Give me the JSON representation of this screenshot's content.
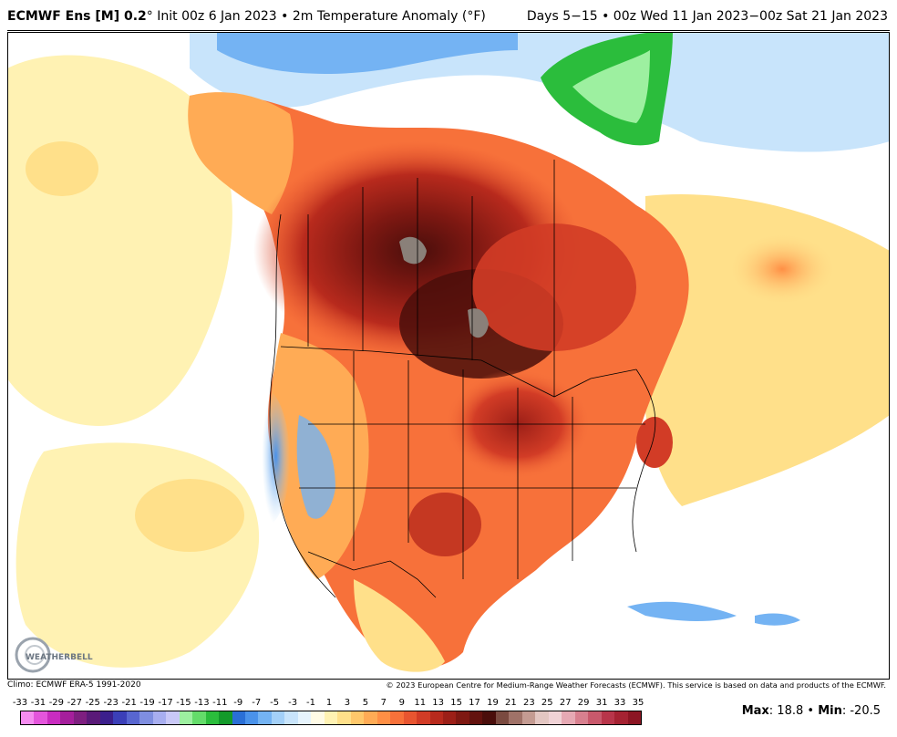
{
  "header": {
    "model": "ECMWF Ens [M] 0.2",
    "degree_symbol": "°",
    "init_text": " Init 00z 6 Jan 2023 • 2m Temperature Anomaly (°F)",
    "valid_text": "Days 5−15 • 00z Wed 11 Jan 2023−00z Sat 21 Jan 2023"
  },
  "footer": {
    "climo": "Climo: ECMWF ERA-5 1991-2020",
    "copyright": "© 2023 European Centre for Medium-Range Weather Forecasts (ECMWF). This service is based on data and products of the ECMWF.",
    "max_label": "Max",
    "max_value": ": 18.8 • ",
    "min_label": "Min",
    "min_value": ": -20.5"
  },
  "logo": {
    "text": "WEATHERBELL"
  },
  "legend": {
    "tick_labels": [
      "-33",
      "-31",
      "-29",
      "-27",
      "-25",
      "-23",
      "-21",
      "-19",
      "-17",
      "-15",
      "-13",
      "-11",
      "-9",
      "-7",
      "-5",
      "-3",
      "-1",
      "1",
      "3",
      "5",
      "7",
      "9",
      "11",
      "13",
      "15",
      "17",
      "19",
      "21",
      "23",
      "25",
      "27",
      "29",
      "31",
      "33",
      "35"
    ],
    "colors": [
      "#f58cf0",
      "#e455dc",
      "#c92cc0",
      "#a51f9c",
      "#7e1f80",
      "#5a1a78",
      "#3b1f8c",
      "#3b3fb8",
      "#5866d0",
      "#7f8ee0",
      "#a8aef0",
      "#c9c8f7",
      "#9df0a0",
      "#64dc6a",
      "#2bbd3c",
      "#139a2a",
      "#2a6fd6",
      "#4a92ea",
      "#74b3f3",
      "#a3d0f8",
      "#c8e4fb",
      "#e6f4fd",
      "#fffbe6",
      "#fff2b3",
      "#ffe08a",
      "#ffc86b",
      "#ffab55",
      "#ff8f45",
      "#f7713a",
      "#e85530",
      "#d23c26",
      "#b82a1d",
      "#9c1f17",
      "#7e1812",
      "#63120e",
      "#4a0e0b",
      "#7a4a40",
      "#a07268",
      "#c49b92",
      "#e3c6c2",
      "#f0d2d6",
      "#e6a9b4",
      "#d8808f",
      "#c9596c",
      "#b8354a",
      "#a52232",
      "#8c1523"
    ],
    "land_colors": {
      "extreme": "#4a0e0b",
      "very_warm": "#8c1a12",
      "warm": "#d23c26",
      "mild_warm": "#f7713a",
      "light_warm": "#ffab55",
      "slight": "#ffe08a",
      "neutral": "#fff2b3",
      "cool": "#a3d0f8",
      "cold": "#4a92ea",
      "greenland": "#2bbd3c",
      "missing": "#8a8079"
    }
  }
}
